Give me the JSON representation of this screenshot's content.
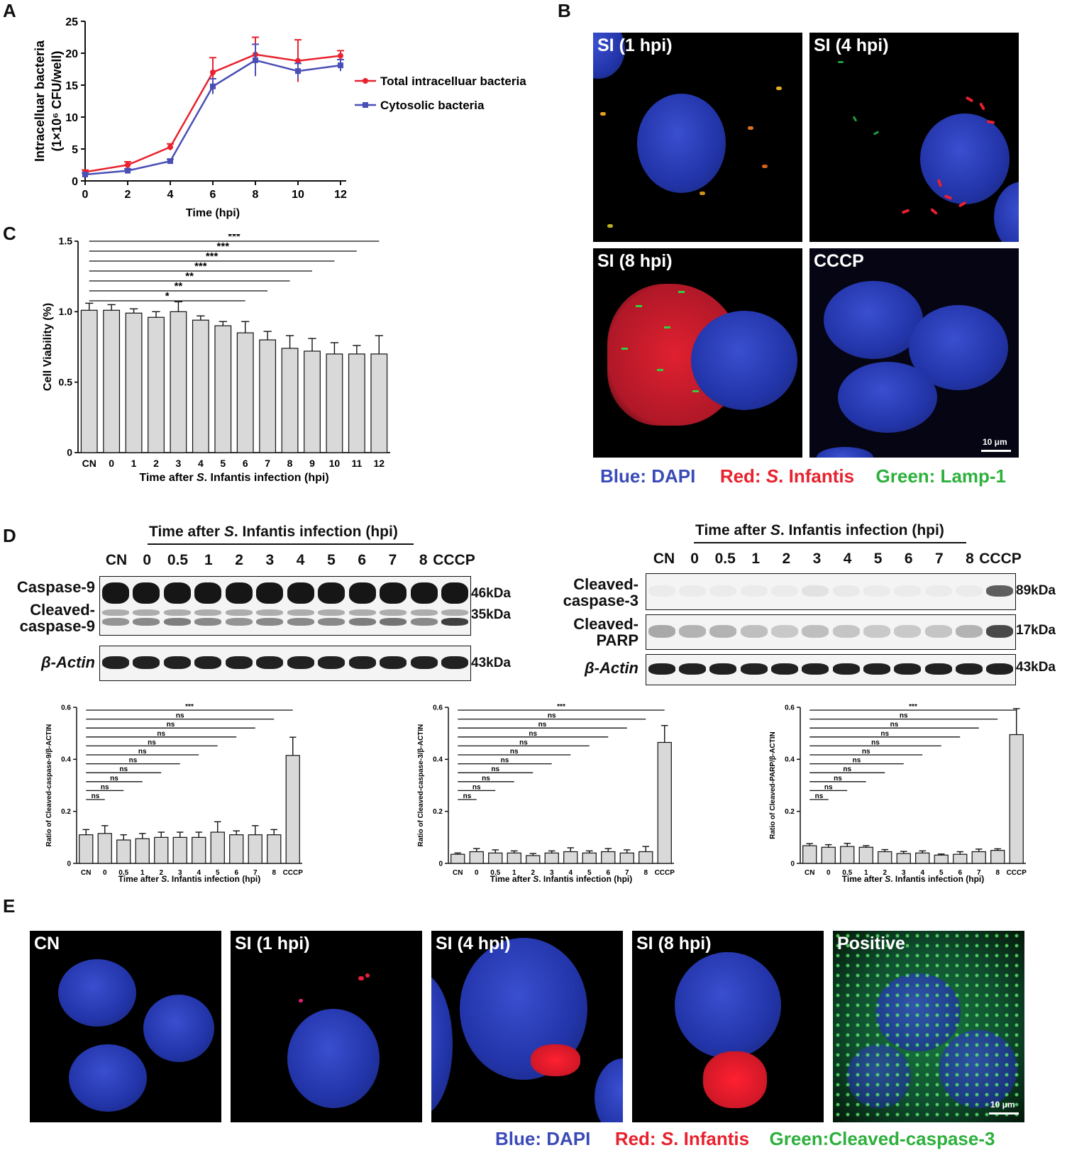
{
  "panels": {
    "A": {
      "label": "A"
    },
    "B": {
      "label": "B"
    },
    "C": {
      "label": "C"
    },
    "D": {
      "label": "D"
    },
    "E": {
      "label": "E"
    }
  },
  "chart_a": {
    "type": "line",
    "ylabel_1": "Intracelluar bacteria",
    "ylabel_2": "(1×10⁶ CFU/well)",
    "xlabel": "Time (hpi)",
    "xlim": [
      0,
      12
    ],
    "ylim": [
      0,
      25
    ],
    "x_ticks": [
      "0",
      "2",
      "4",
      "6",
      "8",
      "10",
      "12"
    ],
    "y_ticks": [
      "0",
      "5",
      "10",
      "15",
      "20",
      "25"
    ],
    "legend_placement": "right",
    "series": [
      {
        "name": "Total intracelluar bacteria",
        "color": "#e8222e",
        "x": [
          0,
          2,
          4,
          6,
          8,
          10,
          12
        ],
        "y": [
          1.4,
          2.5,
          5.3,
          17.0,
          19.8,
          18.8,
          19.6
        ],
        "err": [
          0.3,
          0.5,
          0.5,
          2.3,
          2.7,
          3.3,
          0.8
        ]
      },
      {
        "name": "Cytosolic bacteria",
        "color": "#4a4fb5",
        "x": [
          0,
          2,
          4,
          6,
          8,
          10,
          12
        ],
        "y": [
          1.0,
          1.6,
          3.1,
          14.8,
          18.9,
          17.2,
          18.1
        ],
        "err": [
          0.2,
          0.3,
          0.3,
          1.2,
          2.5,
          1.2,
          0.9
        ]
      }
    ]
  },
  "chart_c": {
    "type": "bar",
    "ylabel": "Cell Viability (%)",
    "xlabel_pre": "Time after ",
    "xlabel_italic": "S",
    "xlabel_post": ". Infantis infection (hpi)",
    "ylim": [
      0,
      1.5
    ],
    "y_ticks": [
      "0",
      "0.5",
      "1.0",
      "1.5"
    ],
    "categories": [
      "CN",
      "0",
      "1",
      "2",
      "3",
      "4",
      "5",
      "6",
      "7",
      "8",
      "9",
      "10",
      "11",
      "12"
    ],
    "values": [
      1.01,
      1.01,
      0.99,
      0.96,
      1.0,
      0.94,
      0.9,
      0.85,
      0.8,
      0.74,
      0.72,
      0.7,
      0.7,
      0.7
    ],
    "err": [
      0.05,
      0.04,
      0.03,
      0.04,
      0.07,
      0.03,
      0.03,
      0.08,
      0.06,
      0.09,
      0.09,
      0.08,
      0.06,
      0.13
    ],
    "significance": [
      {
        "to": "6",
        "label": "*"
      },
      {
        "to": "7",
        "label": "**"
      },
      {
        "to": "8",
        "label": "**"
      },
      {
        "to": "9",
        "label": "***"
      },
      {
        "to": "10",
        "label": "***"
      },
      {
        "to": "11",
        "label": "***"
      },
      {
        "to": "12",
        "label": "***"
      }
    ]
  },
  "panel_b": {
    "tiles": [
      "SI (1 hpi)",
      "SI (4 hpi)",
      "SI (8 hpi)",
      "CCCP"
    ],
    "scale_bar": "10 μm",
    "legend_blue": "Blue: DAPI",
    "legend_red_pre": "Red: ",
    "legend_red_italic": "S",
    "legend_red_post": ". Infantis",
    "legend_green": "Green: Lamp-1"
  },
  "blot_left": {
    "title_pre": "Time after ",
    "title_italic": "S",
    "title_post": ". Infantis infection (hpi)",
    "lanes": [
      "CN",
      "0",
      "0.5",
      "1",
      "2",
      "3",
      "4",
      "5",
      "6",
      "7",
      "8",
      "CCCP"
    ],
    "rows": {
      "caspase9": "Caspase-9",
      "cleaved_caspase9": "Cleaved-\ncaspase-9",
      "actin": "β-Actin"
    },
    "kda": {
      "k46": "46kDa",
      "k35": "35kDa",
      "k43": "43kDa"
    }
  },
  "blot_right": {
    "title_pre": "Time after ",
    "title_italic": "S",
    "title_post": ". Infantis infection (hpi)",
    "lanes": [
      "CN",
      "0",
      "0.5",
      "1",
      "2",
      "3",
      "4",
      "5",
      "6",
      "7",
      "8",
      "CCCP"
    ],
    "rows": {
      "cleaved_caspase3": "Cleaved-\ncaspase-3",
      "cleaved_parp": "Cleaved-\nPARP",
      "actin": "β-Actin"
    },
    "kda": {
      "k89": "89kDa",
      "k17": "17kDa",
      "k43": "43kDa"
    }
  },
  "chart_d": [
    {
      "type": "bar",
      "ylabel": "Ratio of Cleaved-caspase-9/β-ACTIN",
      "xlabel_pre": "Time after ",
      "xlabel_italic": "S",
      "xlabel_post": ". Infantis infection (hpi)",
      "ylim": [
        0,
        0.6
      ],
      "y_ticks": [
        "0",
        "0.2",
        "0.4",
        "0.6"
      ],
      "categories": [
        "CN",
        "0",
        "0.5",
        "1",
        "2",
        "3",
        "4",
        "5",
        "6",
        "7",
        "8",
        "CCCP"
      ],
      "values": [
        0.11,
        0.115,
        0.09,
        0.095,
        0.1,
        0.1,
        0.1,
        0.12,
        0.11,
        0.11,
        0.11,
        0.415
      ],
      "err": [
        0.02,
        0.03,
        0.02,
        0.02,
        0.02,
        0.02,
        0.02,
        0.04,
        0.015,
        0.035,
        0.02,
        0.07
      ],
      "significance": [
        {
          "to": "0",
          "label": "ns"
        },
        {
          "to": "0.5",
          "label": "ns"
        },
        {
          "to": "1",
          "label": "ns"
        },
        {
          "to": "2",
          "label": "ns"
        },
        {
          "to": "3",
          "label": "ns"
        },
        {
          "to": "4",
          "label": "ns"
        },
        {
          "to": "5",
          "label": "ns"
        },
        {
          "to": "6",
          "label": "ns"
        },
        {
          "to": "7",
          "label": "ns"
        },
        {
          "to": "8",
          "label": "ns"
        },
        {
          "to": "CCCP",
          "label": "***"
        }
      ]
    },
    {
      "type": "bar",
      "ylabel": "Ratio of Cleaved-caspase-3/β-ACTIN",
      "xlabel_pre": "Time after ",
      "xlabel_italic": "S",
      "xlabel_post": ". Infantis infection (hpi)",
      "ylim": [
        0,
        0.6
      ],
      "y_ticks": [
        "0",
        "0.2",
        "0.4",
        "0.6"
      ],
      "categories": [
        "CN",
        "0",
        "0.5",
        "1",
        "2",
        "3",
        "4",
        "5",
        "6",
        "7",
        "8",
        "CCCP"
      ],
      "values": [
        0.035,
        0.045,
        0.04,
        0.04,
        0.03,
        0.04,
        0.045,
        0.04,
        0.045,
        0.04,
        0.045,
        0.465
      ],
      "err": [
        0.005,
        0.012,
        0.012,
        0.008,
        0.008,
        0.008,
        0.015,
        0.008,
        0.012,
        0.012,
        0.02,
        0.065
      ],
      "significance": [
        {
          "to": "0",
          "label": "ns"
        },
        {
          "to": "0.5",
          "label": "ns"
        },
        {
          "to": "1",
          "label": "ns"
        },
        {
          "to": "2",
          "label": "ns"
        },
        {
          "to": "3",
          "label": "ns"
        },
        {
          "to": "4",
          "label": "ns"
        },
        {
          "to": "5",
          "label": "ns"
        },
        {
          "to": "6",
          "label": "ns"
        },
        {
          "to": "7",
          "label": "ns"
        },
        {
          "to": "8",
          "label": "ns"
        },
        {
          "to": "CCCP",
          "label": "***"
        }
      ]
    },
    {
      "type": "bar",
      "ylabel": "Ratio of Cleaved-PARP/β-ACTIN",
      "xlabel_pre": "Time after ",
      "xlabel_italic": "S",
      "xlabel_post": ". Infantis infection (hpi)",
      "ylim": [
        0,
        0.6
      ],
      "y_ticks": [
        "0",
        "0.2",
        "0.4",
        "0.6"
      ],
      "categories": [
        "CN",
        "0",
        "0.5",
        "1",
        "2",
        "3",
        "4",
        "5",
        "6",
        "7",
        "8",
        "CCCP"
      ],
      "values": [
        0.068,
        0.062,
        0.065,
        0.062,
        0.045,
        0.038,
        0.04,
        0.032,
        0.035,
        0.045,
        0.05,
        0.495
      ],
      "err": [
        0.008,
        0.01,
        0.012,
        0.006,
        0.008,
        0.008,
        0.008,
        0.004,
        0.01,
        0.01,
        0.006,
        0.1
      ],
      "significance": [
        {
          "to": "0",
          "label": "ns"
        },
        {
          "to": "0.5",
          "label": "ns"
        },
        {
          "to": "1",
          "label": "ns"
        },
        {
          "to": "2",
          "label": "ns"
        },
        {
          "to": "3",
          "label": "ns"
        },
        {
          "to": "4",
          "label": "ns"
        },
        {
          "to": "5",
          "label": "ns"
        },
        {
          "to": "6",
          "label": "ns"
        },
        {
          "to": "7",
          "label": "ns"
        },
        {
          "to": "8",
          "label": "ns"
        },
        {
          "to": "CCCP",
          "label": "***"
        }
      ]
    }
  ],
  "panel_e": {
    "tiles": [
      "CN",
      "SI (1 hpi)",
      "SI (4 hpi)",
      "SI (8 hpi)",
      "Positive"
    ],
    "scale_bar": "10 μm",
    "legend_blue": "Blue: DAPI",
    "legend_red_pre": "Red: ",
    "legend_red_italic": "S",
    "legend_red_post": ". Infantis",
    "legend_green": "Green:Cleaved-caspase-3"
  },
  "colors": {
    "bar_fill": "#d9d9d9",
    "legend_blue": "#3a4ab8",
    "legend_red": "#e8222e",
    "legend_green": "#2db03c"
  }
}
